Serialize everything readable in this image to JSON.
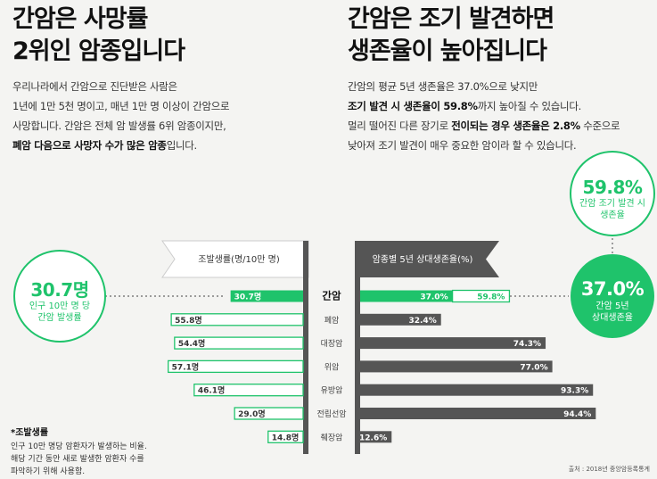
{
  "left": {
    "title_line1": "간암은 사망률",
    "title_line2": "2위인 암종입니다",
    "para_line1": "우리나라에서 간암으로 진단받은 사람은",
    "para_line2": "1년에 1만 5천 명이고, 매년 1만 명 이상이 간암으로",
    "para_line3": "사망합니다. 간암은 전체 암 발생률 6위 암종이지만,",
    "para_line4_bold": "폐암 다음으로 사망자 수가 많은 암종",
    "para_line4_rest": "입니다."
  },
  "right": {
    "title_line1": "간암은 조기 발견하면",
    "title_line2": "생존율이 높아집니다",
    "para_line1": "간암의 평균 5년 생존율은 37.0%으로 낮지만",
    "para_line2_bold": "조기 발견 시 생존율이 59.8%",
    "para_line2_rest": "까지 높아질 수 있습니다.",
    "para_line3_pre": "멀리 떨어진 다른 장기로 ",
    "para_line3_bold": "전이되는 경우 생존율은 2.8%",
    "para_line3_rest": " 수준으로",
    "para_line4": "낮아져 조기 발견이 매우 중요한 암이라 할 수 있습니다."
  },
  "bubbles": {
    "left_value": "30.7명",
    "left_sub1": "인구 10만 명 당",
    "left_sub2": "간암 발생률",
    "early_value": "59.8%",
    "early_sub1": "간암 조기 발견 시",
    "early_sub2": "생존율",
    "five_value": "37.0%",
    "five_sub1": "간암 5년",
    "five_sub2": "상대생존율"
  },
  "chart_data": {
    "type": "bar",
    "categories": [
      "간암",
      "폐암",
      "대장암",
      "위암",
      "유방암",
      "전립선암",
      "췌장암"
    ],
    "series": [
      {
        "name": "조발생률(명/10만 명)",
        "values": [
          30.7,
          55.8,
          54.4,
          57.1,
          46.1,
          29.0,
          14.8
        ],
        "labels": [
          "30.7명",
          "55.8명",
          "54.4명",
          "57.1명",
          "46.1명",
          "29.0명",
          "14.8명"
        ]
      },
      {
        "name": "암종별 5년 상대생존율(%)",
        "values": [
          37.0,
          32.4,
          74.3,
          77.0,
          93.3,
          94.4,
          12.6
        ],
        "labels": [
          "37.0%",
          "32.4%",
          "74.3%",
          "77.0%",
          "93.3%",
          "94.4%",
          "12.6%"
        ]
      }
    ],
    "annotations": {
      "liver_early_detection": 59.8,
      "liver_early_detection_label": "59.8%"
    },
    "colors": {
      "highlight": "#1fc36b",
      "dark": "#555555",
      "outline": "#1fc36b"
    }
  },
  "note": {
    "title": "*조발생률",
    "line1": "인구 10만 명당 암환자가 발생하는 비율.",
    "line2": "해당 기간 동안 새로 발생한 암환자 수를",
    "line3": "파악하기 위해 사용함."
  },
  "source": "출처 : 2018년 중앙암등록통계"
}
